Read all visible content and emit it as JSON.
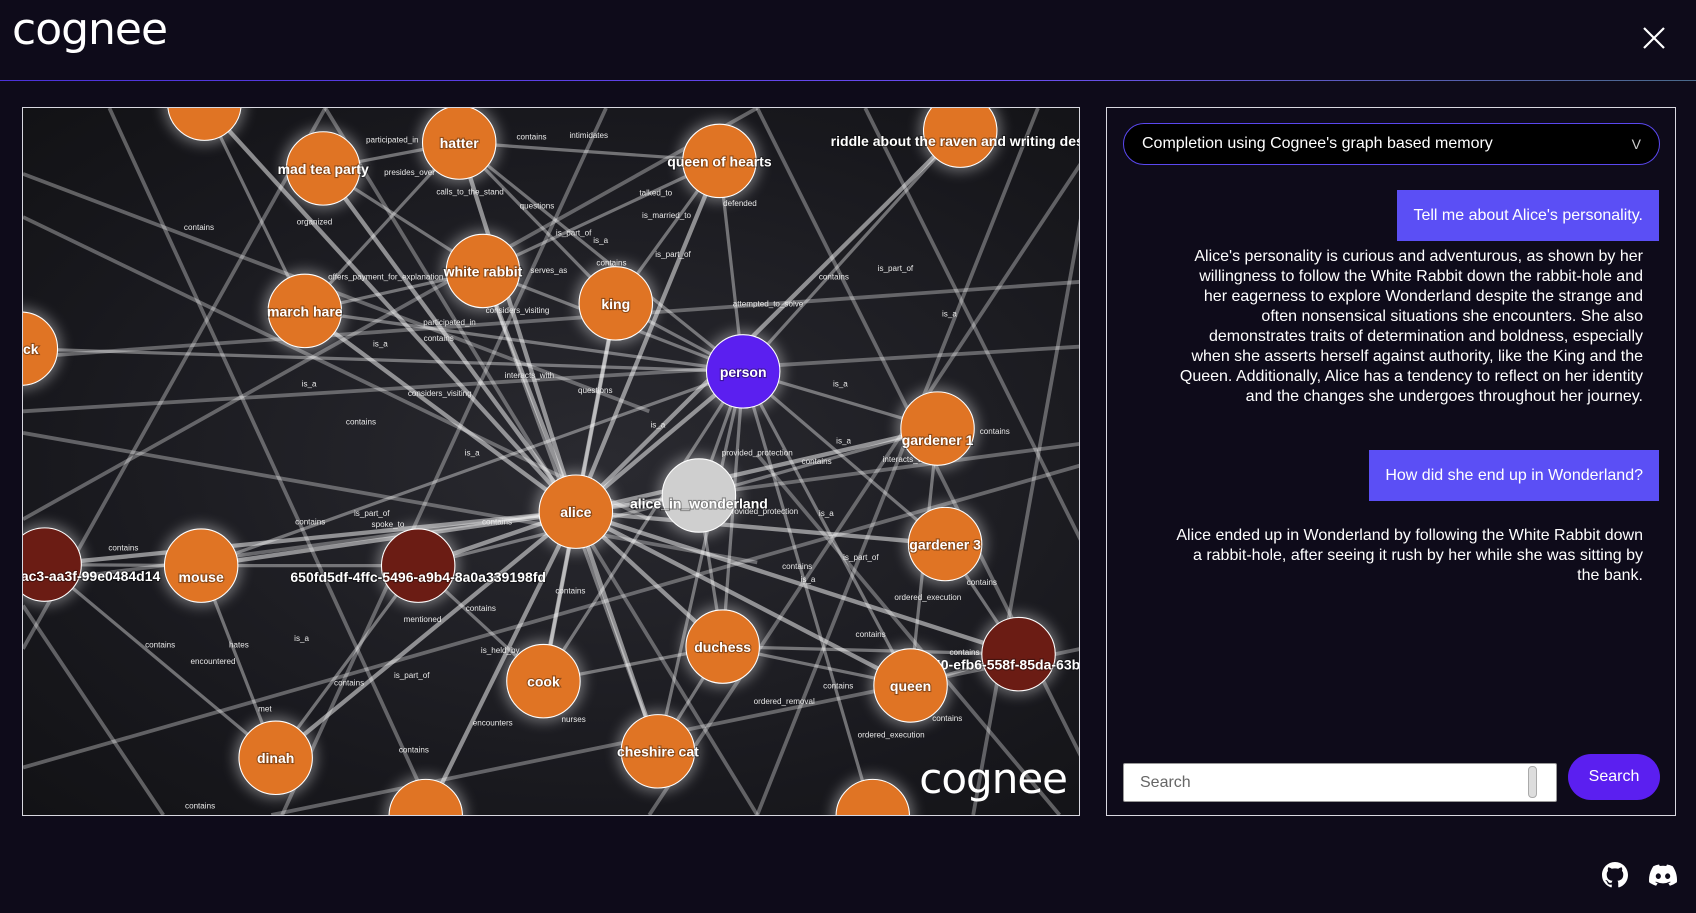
{
  "header": {
    "logo_text": "cognee",
    "close_icon": "close-icon"
  },
  "colors": {
    "background": "#0e0b1a",
    "accent": "#5b4ff5",
    "node_orange": "#e07424",
    "node_person": "#5b1ff0",
    "node_dark": "#6b1c14",
    "node_grey": "#cfcfcf"
  },
  "graph": {
    "watermark": "cognee",
    "nodes": [
      {
        "id": "n0",
        "label": "",
        "color": "#e07424"
      },
      {
        "id": "hatter",
        "label": "hatter",
        "color": "#e07424"
      },
      {
        "id": "mtp",
        "label": "mad tea party",
        "color": "#e07424"
      },
      {
        "id": "qoh",
        "label": "queen of hearts",
        "color": "#e07424"
      },
      {
        "id": "riddle",
        "label": "riddle about the raven and writing des",
        "color": "#e07424"
      },
      {
        "id": "wr",
        "label": "white rabbit",
        "color": "#e07424"
      },
      {
        "id": "king",
        "label": "king",
        "color": "#e07424"
      },
      {
        "id": "mh",
        "label": "march hare",
        "color": "#e07424"
      },
      {
        "id": "ck",
        "label": "ck",
        "color": "#e07424"
      },
      {
        "id": "person",
        "label": "person",
        "color": "#5b1ff0"
      },
      {
        "id": "g1",
        "label": "gardener 1",
        "color": "#e07424"
      },
      {
        "id": "alice",
        "label": "alice",
        "color": "#e07424"
      },
      {
        "id": "aiw",
        "label": "alice_in_wonderland",
        "color": "#cfcfcf"
      },
      {
        "id": "g3",
        "label": "gardener 3",
        "color": "#e07424"
      },
      {
        "id": "mouse",
        "label": "mouse",
        "color": "#e07424"
      },
      {
        "id": "ac3",
        "label": "ac3-aa3f-99e0484d14",
        "color": "#6b1c14"
      },
      {
        "id": "fd",
        "label": "650fd5df-4ffc-5496-a9b4-8a0a339198fd",
        "color": "#6b1c14"
      },
      {
        "id": "b7",
        "label": "b7de8e40-efb6-558f-85da-63b",
        "color": "#6b1c14"
      },
      {
        "id": "duchess",
        "label": "duchess",
        "color": "#e07424"
      },
      {
        "id": "queen",
        "label": "queen",
        "color": "#e07424"
      },
      {
        "id": "cook",
        "label": "cook",
        "color": "#e07424"
      },
      {
        "id": "cc",
        "label": "cheshire cat",
        "color": "#e07424"
      },
      {
        "id": "dinah",
        "label": "dinah",
        "color": "#e07424"
      },
      {
        "id": "b1",
        "label": "",
        "color": "#e07424"
      },
      {
        "id": "b2",
        "label": "",
        "color": "#e07424"
      }
    ],
    "edge_labels": [
      "contains",
      "intimidates",
      "participated_in",
      "presides_over",
      "calls_to_the_stand",
      "talked_to",
      "defended",
      "organized",
      "contains",
      "questions",
      "is_married_to",
      "is_part_of",
      "is_a",
      "is_part_of",
      "serves_as",
      "contains",
      "contains",
      "is_part_of",
      "offers_payment_for_explanation",
      "considers_visiting",
      "participated_in",
      "attempted_to_solve",
      "is_a",
      "is_a",
      "contains",
      "interacts_with",
      "is_a",
      "considers_visiting",
      "questions",
      "is_a",
      "contains",
      "is_a",
      "contains",
      "is_a",
      "provided_protection",
      "is_a",
      "contains",
      "interacts_with",
      "contains",
      "is_part_of",
      "spoke_to",
      "contains",
      "provided_protection",
      "is_a",
      "contains",
      "is_part_of",
      "contains",
      "is_a",
      "contains",
      "contains",
      "ordered_execution",
      "contains",
      "mentioned",
      "contains",
      "hates",
      "is_a",
      "encountered",
      "contains",
      "is_held_by",
      "contains",
      "contains",
      "is_part_of",
      "contains",
      "ordered_removal",
      "met",
      "encounters",
      "nurses",
      "contains",
      "ordered_execution",
      "contains",
      "contains"
    ]
  },
  "chat": {
    "mode_select": "Completion using Cognee's graph based memory",
    "messages": [
      {
        "role": "user",
        "text": "Tell me about Alice's personality."
      },
      {
        "role": "assistant",
        "text": "Alice's personality is curious and adventurous, as shown by her willingness to follow the White Rabbit down the rabbit-hole and her eagerness to explore Wonderland despite the strange and often nonsensical situations she encounters. She also demonstrates traits of determination and boldness, especially when she asserts herself against authority, like the King and the Queen. Additionally, Alice has a tendency to reflect on her identity and the changes she undergoes throughout her journey."
      },
      {
        "role": "user",
        "text": "How did she end up in Wonderland?"
      },
      {
        "role": "assistant",
        "text": "Alice ended up in Wonderland by following the White Rabbit down a rabbit-hole, after seeing it rush by her while she was sitting by the bank."
      }
    ],
    "search_placeholder": "Search",
    "search_value": "",
    "search_button": "Search"
  },
  "footer": {
    "icons": [
      "github-icon",
      "discord-icon"
    ]
  }
}
